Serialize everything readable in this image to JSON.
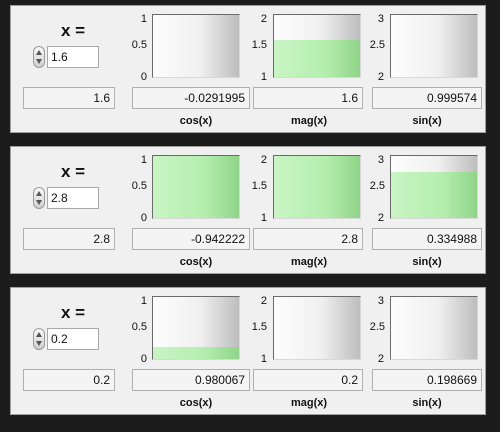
{
  "panels": [
    {
      "x_label": "x =",
      "x_value": "1.6",
      "x_display": "1.6",
      "gauges": [
        {
          "label": "cos(x)",
          "value": "-0.0291995",
          "ticks": [
            "1",
            "0.5",
            "0"
          ],
          "min": 0,
          "max": 1,
          "level": -0.0291995
        },
        {
          "label": "mag(x)",
          "value": "1.6",
          "ticks": [
            "2",
            "1.5",
            "1"
          ],
          "min": 1,
          "max": 2,
          "level": 1.6
        },
        {
          "label": "sin(x)",
          "value": "0.999574",
          "ticks": [
            "3",
            "2.5",
            "2"
          ],
          "min": 2,
          "max": 3,
          "level": 0.999574
        }
      ]
    },
    {
      "x_label": "x =",
      "x_value": "2.8",
      "x_display": "2.8",
      "gauges": [
        {
          "label": "cos(x)",
          "value": "-0.942222",
          "ticks": [
            "1",
            "0.5",
            "0"
          ],
          "min": 0,
          "max": 1,
          "level": 1.0
        },
        {
          "label": "mag(x)",
          "value": "2.8",
          "ticks": [
            "2",
            "1.5",
            "1"
          ],
          "min": 1,
          "max": 2,
          "level": 2.0
        },
        {
          "label": "sin(x)",
          "value": "0.334988",
          "ticks": [
            "3",
            "2.5",
            "2"
          ],
          "min": 2,
          "max": 3,
          "level": 2.75
        }
      ]
    },
    {
      "x_label": "x =",
      "x_value": "0.2",
      "x_display": "0.2",
      "gauges": [
        {
          "label": "cos(x)",
          "value": "0.980067",
          "ticks": [
            "1",
            "0.5",
            "0"
          ],
          "min": 0,
          "max": 1,
          "level": 0.2
        },
        {
          "label": "mag(x)",
          "value": "0.2",
          "ticks": [
            "2",
            "1.5",
            "1"
          ],
          "min": 1,
          "max": 2,
          "level": 0.2
        },
        {
          "label": "sin(x)",
          "value": "0.198669",
          "ticks": [
            "3",
            "2.5",
            "2"
          ],
          "min": 2,
          "max": 3,
          "level": 0.198669
        }
      ]
    }
  ]
}
